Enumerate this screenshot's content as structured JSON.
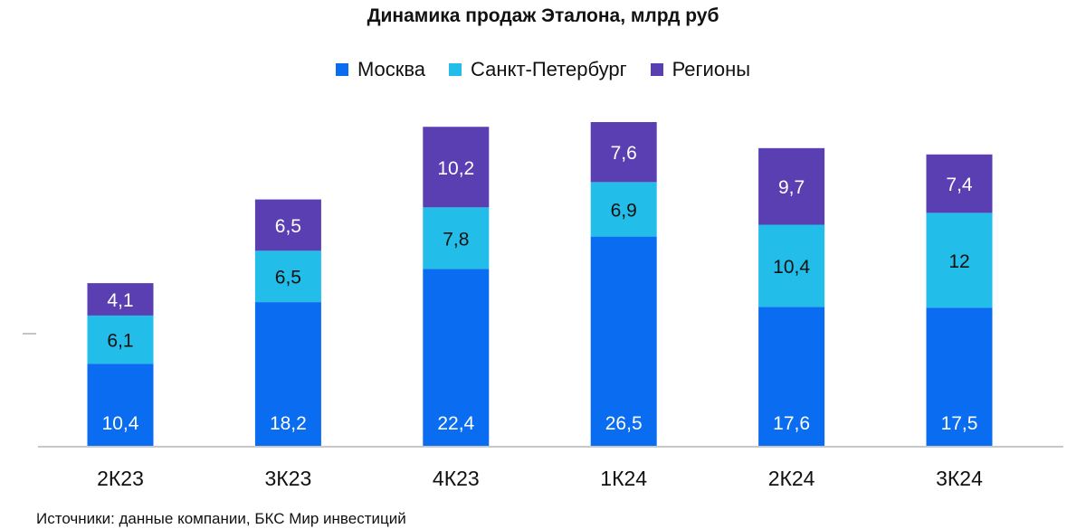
{
  "chart_data": {
    "type": "bar",
    "stacked": true,
    "title": "Динамика продаж Эталона, млрд руб",
    "categories": [
      "2К23",
      "3К23",
      "4К23",
      "1К24",
      "2К24",
      "3К24"
    ],
    "series": [
      {
        "name": "Москва",
        "color": "#0a6cf0",
        "label_color": "#ffffff",
        "values": [
          10.4,
          18.2,
          22.4,
          26.5,
          17.6,
          17.5
        ],
        "labels": [
          "10,4",
          "18,2",
          "22,4",
          "26,5",
          "17,6",
          "17,5"
        ]
      },
      {
        "name": "Санкт-Петербург",
        "color": "#22bde8",
        "label_color": "#111111",
        "values": [
          6.1,
          6.5,
          7.8,
          6.9,
          10.4,
          12
        ],
        "labels": [
          "6,1",
          "6,5",
          "7,8",
          "6,9",
          "10,4",
          "12"
        ]
      },
      {
        "name": "Регионы",
        "color": "#5a3fb2",
        "label_color": "#ffffff",
        "values": [
          4.1,
          6.5,
          10.2,
          7.6,
          9.7,
          7.4
        ],
        "labels": [
          "4,1",
          "6,5",
          "10,2",
          "7,6",
          "9,7",
          "7,4"
        ]
      }
    ],
    "xlabel": "",
    "ylabel": "",
    "ylim": [
      0,
      41
    ],
    "legend": "top-center",
    "grid": false
  },
  "source": "Источники: данные компании, БКС Мир инвестиций"
}
